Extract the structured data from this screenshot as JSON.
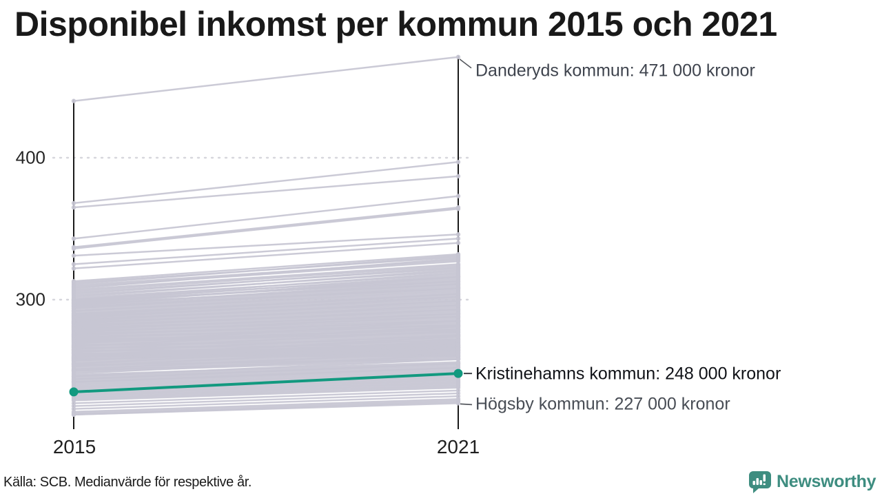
{
  "title": "Disponibel inkomst per kommun 2015 och 2021",
  "source_note": "Källa: SCB. Medianvärde för respektive år.",
  "brand": {
    "name": "Newsworthy",
    "logo_icon": "bar-chart-speech-bubble-icon"
  },
  "colors": {
    "highlight": "#12997f",
    "line_gray": "#c7c6d3",
    "axis": "#1a1a1a",
    "gridline": "#d6d6dc",
    "leader": "#55585e",
    "brand_teal": "#3e8d80"
  },
  "chart_data": {
    "type": "line",
    "subtype": "slope-chart",
    "x_categories": [
      "2015",
      "2021"
    ],
    "y_ticks": [
      {
        "label": "400",
        "value": 400
      },
      {
        "label": "300",
        "value": 300
      }
    ],
    "y_unit": "tusen kronor",
    "ylim": [
      209,
      480
    ],
    "grid": "dotted-horizontal",
    "highlight_series": {
      "name": "Kristinehamns kommun",
      "values": [
        235,
        248
      ],
      "label": "Kristinehamns kommun: 248 000 kronor"
    },
    "labeled_series": [
      {
        "name": "Danderyds kommun",
        "values": [
          440,
          471
        ],
        "label": "Danderyds kommun: 471 000 kronor"
      },
      {
        "name": "Högsby kommun",
        "values": [
          219,
          227
        ],
        "label": "Högsby kommun: 227 000 kronor"
      }
    ],
    "background_lines": [
      [
        368,
        397
      ],
      [
        365,
        387
      ],
      [
        343,
        373
      ],
      [
        337,
        365
      ],
      [
        336,
        364
      ],
      [
        331,
        346
      ],
      [
        325,
        343
      ],
      [
        322,
        340
      ],
      [
        313,
        332
      ],
      [
        312,
        330
      ],
      [
        311,
        331
      ],
      [
        310,
        328
      ],
      [
        309,
        327
      ],
      [
        308,
        329
      ],
      [
        307,
        325
      ],
      [
        306,
        324
      ],
      [
        305,
        322
      ],
      [
        304,
        323
      ],
      [
        303,
        320
      ],
      [
        302,
        321
      ],
      [
        301,
        318
      ],
      [
        300,
        319
      ],
      [
        300,
        316
      ],
      [
        299,
        317
      ],
      [
        299,
        313
      ],
      [
        298,
        315
      ],
      [
        298,
        314
      ],
      [
        297,
        316
      ],
      [
        297,
        311
      ],
      [
        296,
        313
      ],
      [
        296,
        312
      ],
      [
        295,
        311
      ],
      [
        295,
        308
      ],
      [
        294,
        310
      ],
      [
        294,
        309
      ],
      [
        293,
        308
      ],
      [
        292,
        307
      ],
      [
        292,
        306
      ],
      [
        291,
        305
      ],
      [
        290,
        304
      ],
      [
        290,
        303
      ],
      [
        289,
        302
      ],
      [
        289,
        304
      ],
      [
        288,
        301
      ],
      [
        288,
        300
      ],
      [
        287,
        299
      ],
      [
        287,
        302
      ],
      [
        286,
        298
      ],
      [
        286,
        297
      ],
      [
        285,
        296
      ],
      [
        285,
        299
      ],
      [
        284,
        295
      ],
      [
        284,
        294
      ],
      [
        283,
        293
      ],
      [
        283,
        296
      ],
      [
        282,
        292
      ],
      [
        282,
        291
      ],
      [
        281,
        290
      ],
      [
        281,
        293
      ],
      [
        280,
        289
      ],
      [
        280,
        288
      ],
      [
        279,
        287
      ],
      [
        279,
        290
      ],
      [
        278,
        286
      ],
      [
        278,
        285
      ],
      [
        277,
        284
      ],
      [
        277,
        288
      ],
      [
        276,
        283
      ],
      [
        276,
        282
      ],
      [
        275,
        281
      ],
      [
        275,
        285
      ],
      [
        274,
        280
      ],
      [
        274,
        279
      ],
      [
        273,
        278
      ],
      [
        273,
        282
      ],
      [
        272,
        277
      ],
      [
        272,
        276
      ],
      [
        271,
        275
      ],
      [
        271,
        279
      ],
      [
        270,
        274
      ],
      [
        270,
        277
      ],
      [
        269,
        273
      ],
      [
        269,
        285
      ],
      [
        268,
        272
      ],
      [
        268,
        271
      ],
      [
        267,
        270
      ],
      [
        267,
        281
      ],
      [
        266,
        269
      ],
      [
        266,
        268
      ],
      [
        265,
        267
      ],
      [
        265,
        278
      ],
      [
        264,
        266
      ],
      [
        264,
        265
      ],
      [
        263,
        264
      ],
      [
        263,
        275
      ],
      [
        262,
        263
      ],
      [
        262,
        262
      ],
      [
        261,
        261
      ],
      [
        261,
        272
      ],
      [
        260,
        260
      ],
      [
        260,
        270
      ],
      [
        259,
        269
      ],
      [
        259,
        274
      ],
      [
        258,
        268
      ],
      [
        258,
        264
      ],
      [
        257,
        267
      ],
      [
        257,
        271
      ],
      [
        256,
        266
      ],
      [
        255,
        265
      ],
      [
        255,
        268
      ],
      [
        254,
        264
      ],
      [
        254,
        258
      ],
      [
        253,
        263
      ],
      [
        253,
        266
      ],
      [
        252,
        262
      ],
      [
        251,
        261
      ],
      [
        251,
        263
      ],
      [
        250,
        260
      ],
      [
        250,
        259
      ],
      [
        249,
        258
      ],
      [
        248,
        261
      ],
      [
        247,
        256
      ],
      [
        246,
        255
      ],
      [
        246,
        258
      ],
      [
        245,
        254
      ],
      [
        244,
        253
      ],
      [
        244,
        255
      ],
      [
        243,
        252
      ],
      [
        242,
        251
      ],
      [
        242,
        252
      ],
      [
        241,
        250
      ],
      [
        240,
        249
      ],
      [
        239,
        248
      ],
      [
        238,
        247
      ],
      [
        237,
        246
      ],
      [
        236,
        245
      ],
      [
        235,
        244
      ],
      [
        234,
        243
      ],
      [
        233,
        242
      ],
      [
        232,
        241
      ],
      [
        231,
        240
      ],
      [
        230,
        239
      ],
      [
        229,
        238
      ],
      [
        227,
        236
      ],
      [
        225,
        234
      ],
      [
        223,
        232
      ],
      [
        221,
        230
      ],
      [
        220,
        229
      ],
      [
        219,
        228
      ]
    ]
  }
}
